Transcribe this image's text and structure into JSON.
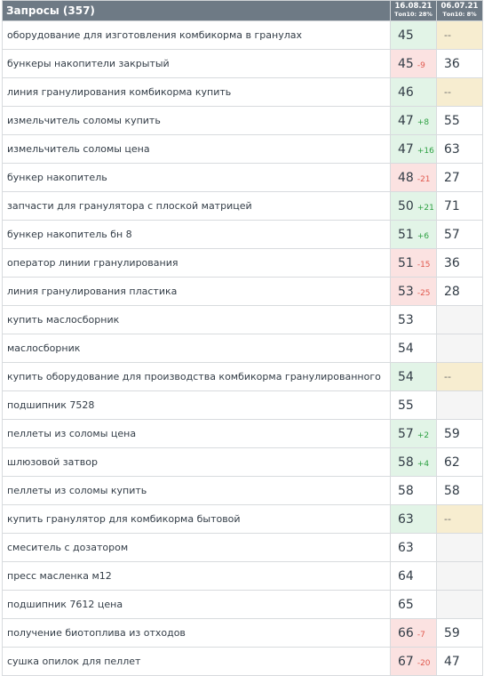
{
  "header": {
    "title": "Запросы (357)",
    "columns": [
      {
        "date": "16.08.21",
        "top": "Топ10: 28%"
      },
      {
        "date": "06.07.21",
        "top": "Топ10: 8%"
      }
    ]
  },
  "rows": [
    {
      "query": "оборудование для изготовления комбикорма в гранулах",
      "pos1": "45",
      "delta": "",
      "dir": "",
      "bg1": "green",
      "pos2": "--",
      "bg2": "tan"
    },
    {
      "query": "бункеры накопители закрытый",
      "pos1": "45",
      "delta": "-9",
      "dir": "down",
      "bg1": "red",
      "pos2": "36",
      "bg2": ""
    },
    {
      "query": "линия гранулирования комбикорма купить",
      "pos1": "46",
      "delta": "",
      "dir": "",
      "bg1": "green",
      "pos2": "--",
      "bg2": "tan"
    },
    {
      "query": "измельчитель соломы купить",
      "pos1": "47",
      "delta": "+8",
      "dir": "up",
      "bg1": "green",
      "pos2": "55",
      "bg2": ""
    },
    {
      "query": "измельчитель соломы цена",
      "pos1": "47",
      "delta": "+16",
      "dir": "up",
      "bg1": "green",
      "pos2": "63",
      "bg2": ""
    },
    {
      "query": "бункер накопитель",
      "pos1": "48",
      "delta": "-21",
      "dir": "down",
      "bg1": "red",
      "pos2": "27",
      "bg2": ""
    },
    {
      "query": "запчасти для гранулятора с плоской матрицей",
      "pos1": "50",
      "delta": "+21",
      "dir": "up",
      "bg1": "green",
      "pos2": "71",
      "bg2": ""
    },
    {
      "query": "бункер накопитель бн 8",
      "pos1": "51",
      "delta": "+6",
      "dir": "up",
      "bg1": "green",
      "pos2": "57",
      "bg2": ""
    },
    {
      "query": "оператор линии гранулирования",
      "pos1": "51",
      "delta": "-15",
      "dir": "down",
      "bg1": "red",
      "pos2": "36",
      "bg2": ""
    },
    {
      "query": "линия гранулирования пластика",
      "pos1": "53",
      "delta": "-25",
      "dir": "down",
      "bg1": "red",
      "pos2": "28",
      "bg2": ""
    },
    {
      "query": "купить маслосборник",
      "pos1": "53",
      "delta": "",
      "dir": "",
      "bg1": "",
      "pos2": "",
      "bg2": "gray"
    },
    {
      "query": "маслосборник",
      "pos1": "54",
      "delta": "",
      "dir": "",
      "bg1": "",
      "pos2": "",
      "bg2": "gray"
    },
    {
      "query": "купить оборудование для производства комбикорма гранулированного",
      "pos1": "54",
      "delta": "",
      "dir": "",
      "bg1": "green",
      "pos2": "--",
      "bg2": "tan"
    },
    {
      "query": "подшипник 7528",
      "pos1": "55",
      "delta": "",
      "dir": "",
      "bg1": "",
      "pos2": "",
      "bg2": "gray"
    },
    {
      "query": "пеллеты из соломы цена",
      "pos1": "57",
      "delta": "+2",
      "dir": "up",
      "bg1": "green",
      "pos2": "59",
      "bg2": ""
    },
    {
      "query": "шлюзовой затвор",
      "pos1": "58",
      "delta": "+4",
      "dir": "up",
      "bg1": "green",
      "pos2": "62",
      "bg2": ""
    },
    {
      "query": "пеллеты из соломы купить",
      "pos1": "58",
      "delta": "",
      "dir": "",
      "bg1": "",
      "pos2": "58",
      "bg2": ""
    },
    {
      "query": "купить гранулятор для комбикорма бытовой",
      "pos1": "63",
      "delta": "",
      "dir": "",
      "bg1": "green",
      "pos2": "--",
      "bg2": "tan"
    },
    {
      "query": "смеситель с дозатором",
      "pos1": "63",
      "delta": "",
      "dir": "",
      "bg1": "",
      "pos2": "",
      "bg2": "gray"
    },
    {
      "query": "пресс масленка м12",
      "pos1": "64",
      "delta": "",
      "dir": "",
      "bg1": "",
      "pos2": "",
      "bg2": "gray"
    },
    {
      "query": "подшипник 7612 цена",
      "pos1": "65",
      "delta": "",
      "dir": "",
      "bg1": "",
      "pos2": "",
      "bg2": "gray"
    },
    {
      "query": "получение биотоплива из отходов",
      "pos1": "66",
      "delta": "-7",
      "dir": "down",
      "bg1": "red",
      "pos2": "59",
      "bg2": ""
    },
    {
      "query": "сушка опилок для пеллет",
      "pos1": "67",
      "delta": "-20",
      "dir": "down",
      "bg1": "red",
      "pos2": "47",
      "bg2": ""
    }
  ]
}
